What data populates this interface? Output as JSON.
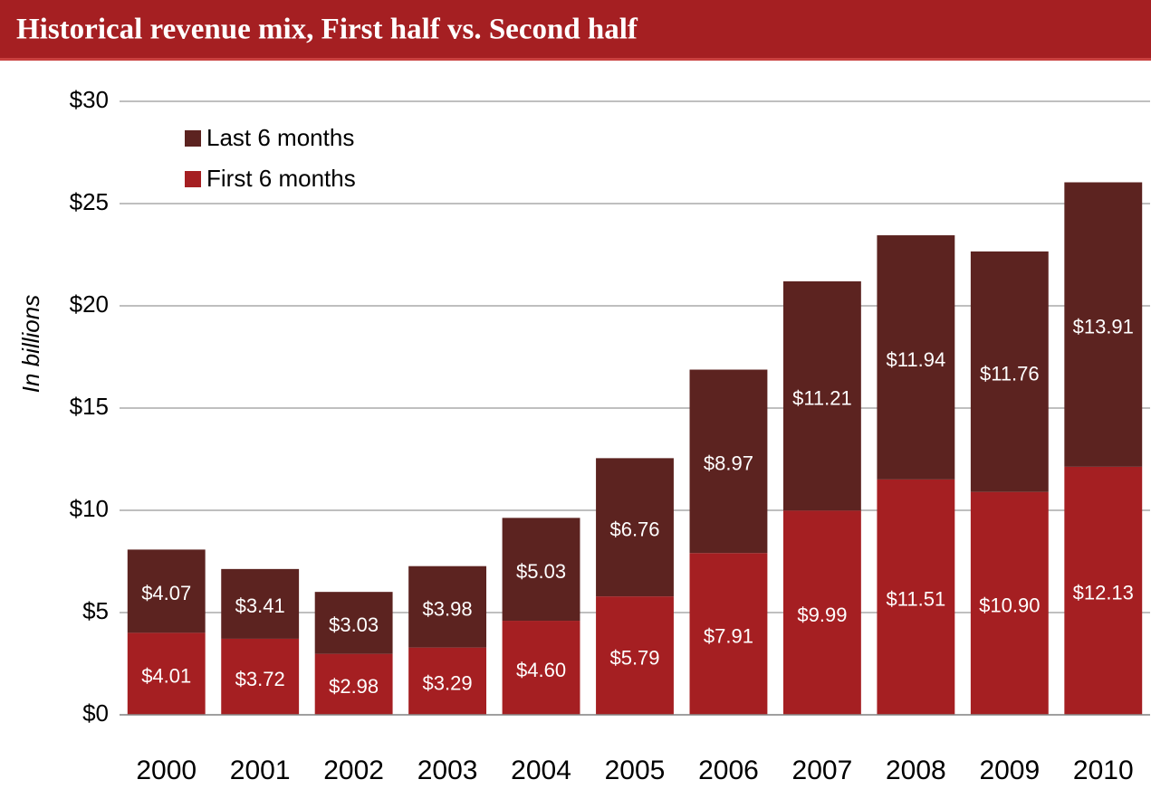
{
  "chart_data": {
    "type": "stacked_bar",
    "title": "Historical revenue mix, First half vs. Second half",
    "ylabel": "In billions",
    "categories": [
      "2000",
      "2001",
      "2002",
      "2003",
      "2004",
      "2005",
      "2006",
      "2007",
      "2008",
      "2009",
      "2010"
    ],
    "series": [
      {
        "name": "First 6 months",
        "color": "#a51f22",
        "values": [
          4.01,
          3.72,
          2.98,
          3.29,
          4.6,
          5.79,
          7.91,
          9.99,
          11.51,
          10.9,
          12.13
        ],
        "value_labels": [
          "$4.01",
          "$3.72",
          "$2.98",
          "$3.29",
          "$4.60",
          "$5.79",
          "$7.91",
          "$9.99",
          "$11.51",
          "$10.90",
          "$12.13"
        ]
      },
      {
        "name": "Last 6 months",
        "color": "#5c2320",
        "values": [
          4.07,
          3.41,
          3.03,
          3.98,
          5.03,
          6.76,
          8.97,
          11.21,
          11.94,
          11.76,
          13.91
        ],
        "value_labels": [
          "$4.07",
          "$3.41",
          "$3.03",
          "$3.98",
          "$5.03",
          "$6.76",
          "$8.97",
          "$11.21",
          "$11.94",
          "$11.76",
          "$13.91"
        ]
      }
    ],
    "ylim": [
      0,
      30
    ],
    "yticks": [
      {
        "value": 0,
        "label": "$0"
      },
      {
        "value": 5,
        "label": "$5"
      },
      {
        "value": 10,
        "label": "$10"
      },
      {
        "value": 15,
        "label": "$15"
      },
      {
        "value": 20,
        "label": "$20"
      },
      {
        "value": 25,
        "label": "$25"
      },
      {
        "value": 30,
        "label": "$30"
      }
    ],
    "grid": true,
    "legend": "upper-left"
  }
}
